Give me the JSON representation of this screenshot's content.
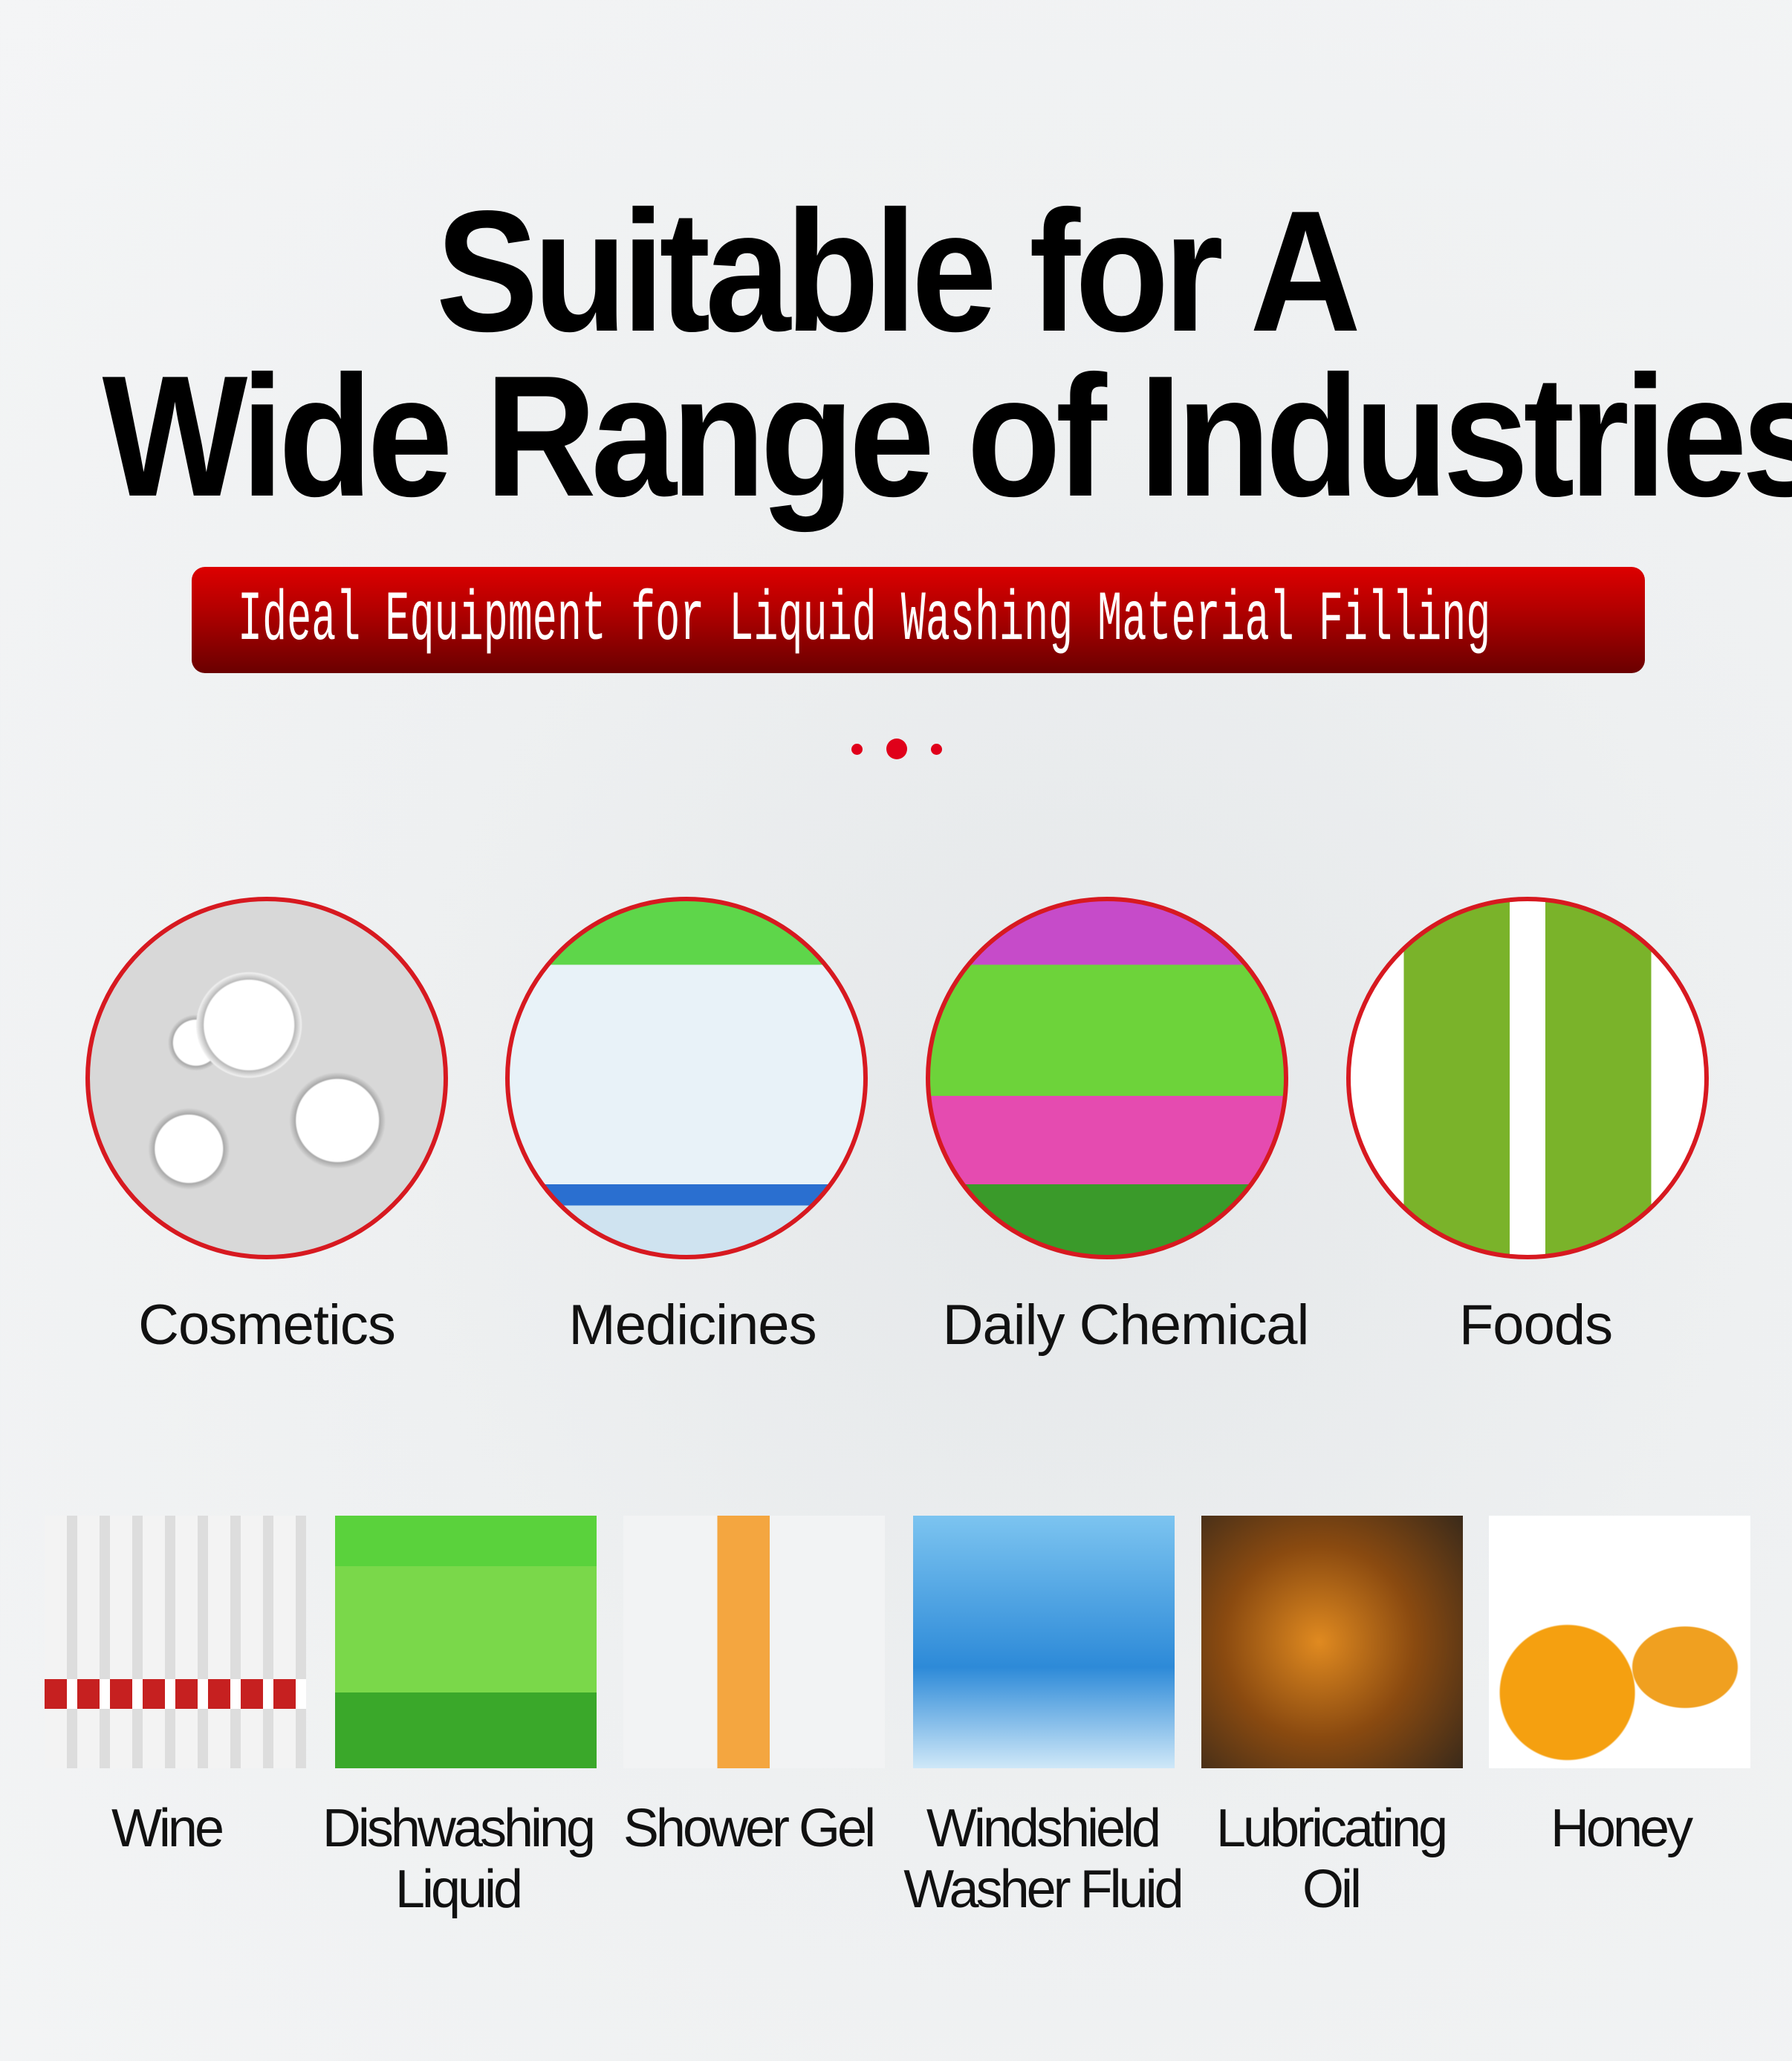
{
  "title": {
    "line1": "Suitable for A",
    "line2": "Wide Range of Industries"
  },
  "banner": {
    "text": "Ideal Equipment for Liquid Washing Material Filling",
    "colors": [
      "#dd0000",
      "#6a0000"
    ]
  },
  "accent_color": "#d71920",
  "categories": [
    {
      "label": "Cosmetics",
      "image": "bubbles-image"
    },
    {
      "label": "Medicines",
      "image": "disinfectant-bottles-image"
    },
    {
      "label": "Daily Chemical",
      "image": "detergent-bottles-image"
    },
    {
      "label": "Foods",
      "image": "olive-oil-bottles-image"
    }
  ],
  "products": [
    {
      "label": "Wine",
      "image": "baijiu-bottles-image"
    },
    {
      "label": "Dishwashing Liquid",
      "image": "dish-soap-bottles-image"
    },
    {
      "label": "Shower Gel",
      "image": "shower-gel-bottle-image"
    },
    {
      "label": "Windshield Washer Fluid",
      "image": "washer-fluid-bottles-image"
    },
    {
      "label": "Lubricating Oil",
      "image": "gears-oil-image"
    },
    {
      "label": "Honey",
      "image": "honey-bottles-image"
    }
  ]
}
